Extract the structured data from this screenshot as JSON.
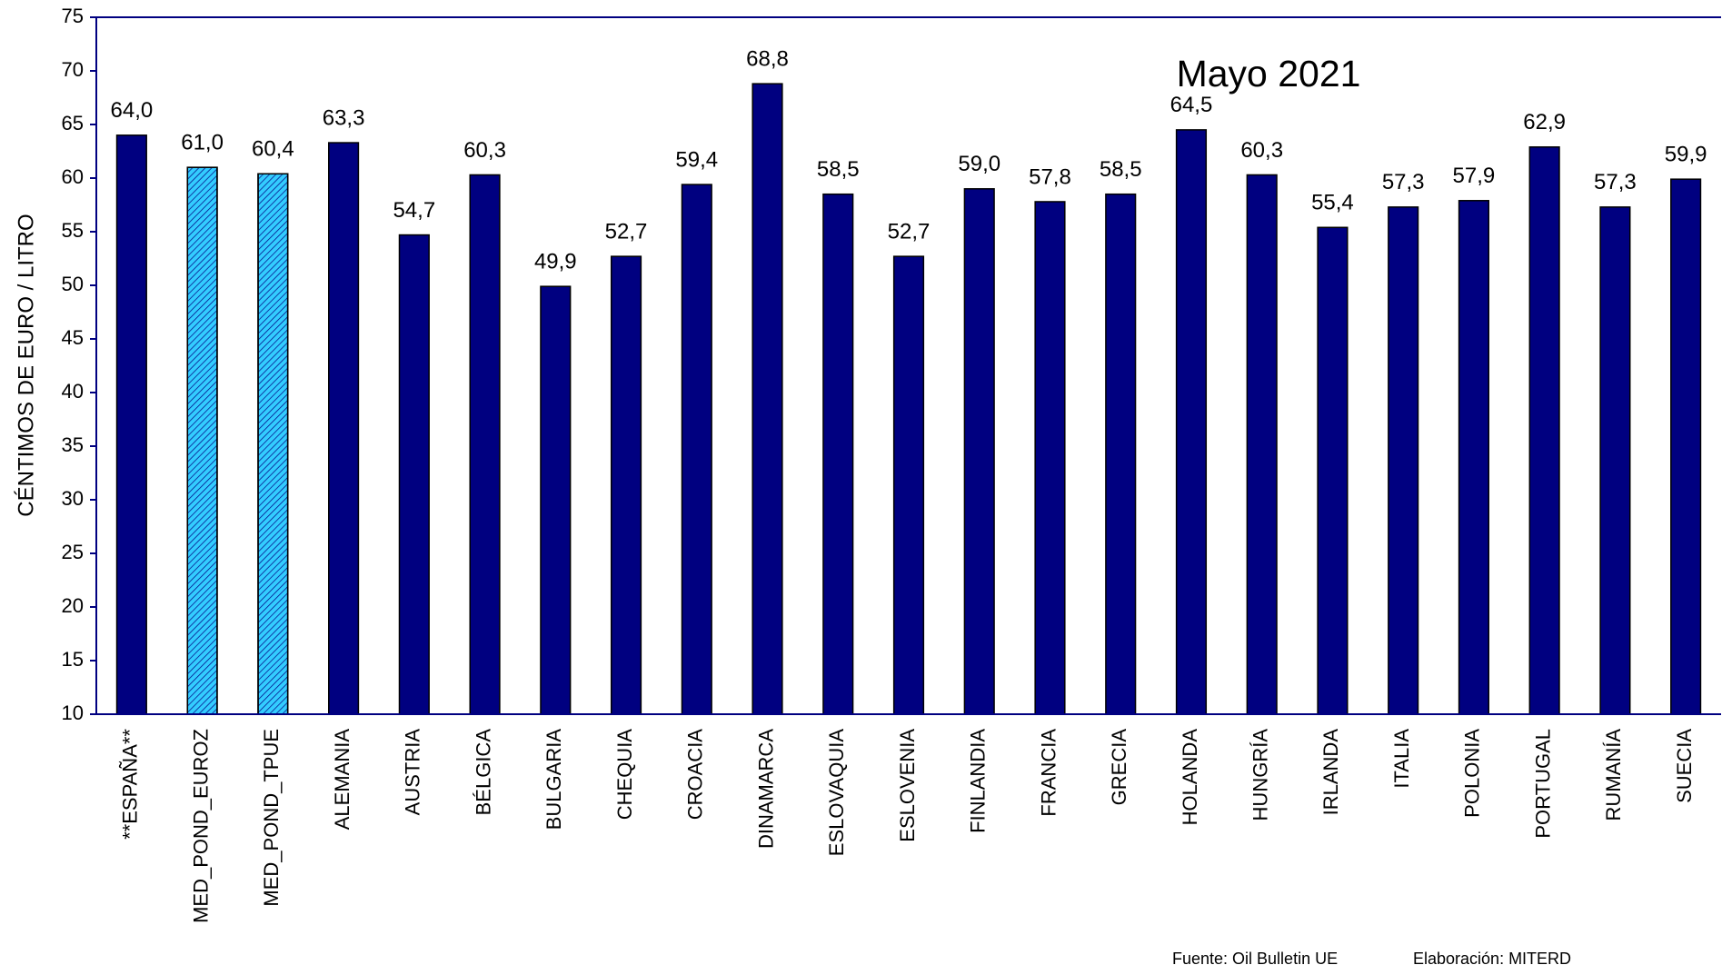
{
  "chart_data": {
    "type": "bar",
    "title": "Mayo 2021",
    "y_label": "CÉNTIMOS DE EURO / LITRO",
    "source": "Fuente: Oil Bulletin UE",
    "credit": "Elaboración: MITERD",
    "categories": [
      "**ESPAÑA**",
      "MED_POND_EUROZ",
      "MED_POND_TPUE",
      "ALEMANIA",
      "AUSTRIA",
      "BÉLGICA",
      "BULGARIA",
      "CHEQUIA",
      "CROACIA",
      "DINAMARCA",
      "ESLOVAQUIA",
      "ESLOVENIA",
      "FINLANDIA",
      "FRANCIA",
      "GRECIA",
      "HOLANDA",
      "HUNGRÍA",
      "IRLANDA",
      "ITALIA",
      "POLONIA",
      "PORTUGAL",
      "RUMANÍA",
      "SUECIA"
    ],
    "values": [
      64.0,
      61.0,
      60.4,
      63.3,
      54.7,
      60.3,
      49.9,
      52.7,
      59.4,
      68.8,
      58.5,
      52.7,
      59.0,
      57.8,
      58.5,
      64.5,
      60.3,
      55.4,
      57.3,
      57.9,
      62.9,
      57.3,
      59.9
    ],
    "value_labels": [
      "64,0",
      "61,0",
      "60,4",
      "63,3",
      "54,7",
      "60,3",
      "49,9",
      "52,7",
      "59,4",
      "68,8",
      "58,5",
      "52,7",
      "59,0",
      "57,8",
      "58,5",
      "64,5",
      "60,3",
      "55,4",
      "57,3",
      "57,9",
      "62,9",
      "57,3",
      "59,9"
    ],
    "colors": [
      "#000080",
      "#33ccff",
      "#33ccff",
      "#000080",
      "#000080",
      "#000080",
      "#000080",
      "#000080",
      "#000080",
      "#000080",
      "#000080",
      "#000080",
      "#000080",
      "#000080",
      "#000080",
      "#000080",
      "#000080",
      "#000080",
      "#000080",
      "#000080",
      "#000080",
      "#000080",
      "#000080"
    ],
    "hatched": [
      false,
      true,
      true,
      false,
      false,
      false,
      false,
      false,
      false,
      false,
      false,
      false,
      false,
      false,
      false,
      false,
      false,
      false,
      false,
      false,
      false,
      false,
      false
    ],
    "ylim": [
      10,
      75
    ],
    "yticks": [
      10,
      15,
      20,
      25,
      30,
      35,
      40,
      45,
      50,
      55,
      60,
      65,
      70,
      75
    ],
    "grid": false
  }
}
